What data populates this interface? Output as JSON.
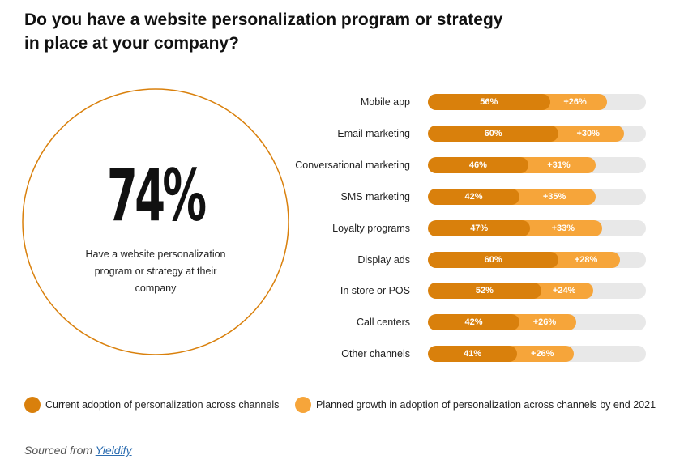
{
  "title": "Do you have a website personalization program or strategy\nin place at your company?",
  "highlight": {
    "value": "74%",
    "text": "Have a website personalization program or strategy at their company"
  },
  "colors": {
    "current": "#d9800c",
    "growth": "#f6a53a",
    "track": "#e8e8e8",
    "circle": "#d9800c"
  },
  "chart_data": {
    "type": "bar",
    "orientation": "horizontal",
    "stacked": true,
    "xlim": [
      0,
      100
    ],
    "categories": [
      "Mobile app",
      "Email marketing",
      "Conversational marketing",
      "SMS marketing",
      "Loyalty programs",
      "Display ads",
      "In store or POS",
      "Call centers",
      "Other channels"
    ],
    "series": [
      {
        "name": "Current adoption of personalization across channels",
        "values": [
          56,
          60,
          46,
          42,
          47,
          60,
          52,
          42,
          41
        ],
        "labels": [
          "56%",
          "60%",
          "46%",
          "42%",
          "47%",
          "60%",
          "52%",
          "42%",
          "41%"
        ]
      },
      {
        "name": "Planned growth in adoption of personalization across channels by end 2021",
        "values": [
          26,
          30,
          31,
          35,
          33,
          28,
          24,
          26,
          26
        ],
        "labels": [
          "+26%",
          "+30%",
          "+31%",
          "+35%",
          "+33%",
          "+28%",
          "+24%",
          "+26%",
          "+26%"
        ]
      }
    ],
    "legend_position": "bottom"
  },
  "source": {
    "prefix": "Sourced from",
    "link_text": "Yieldify"
  }
}
